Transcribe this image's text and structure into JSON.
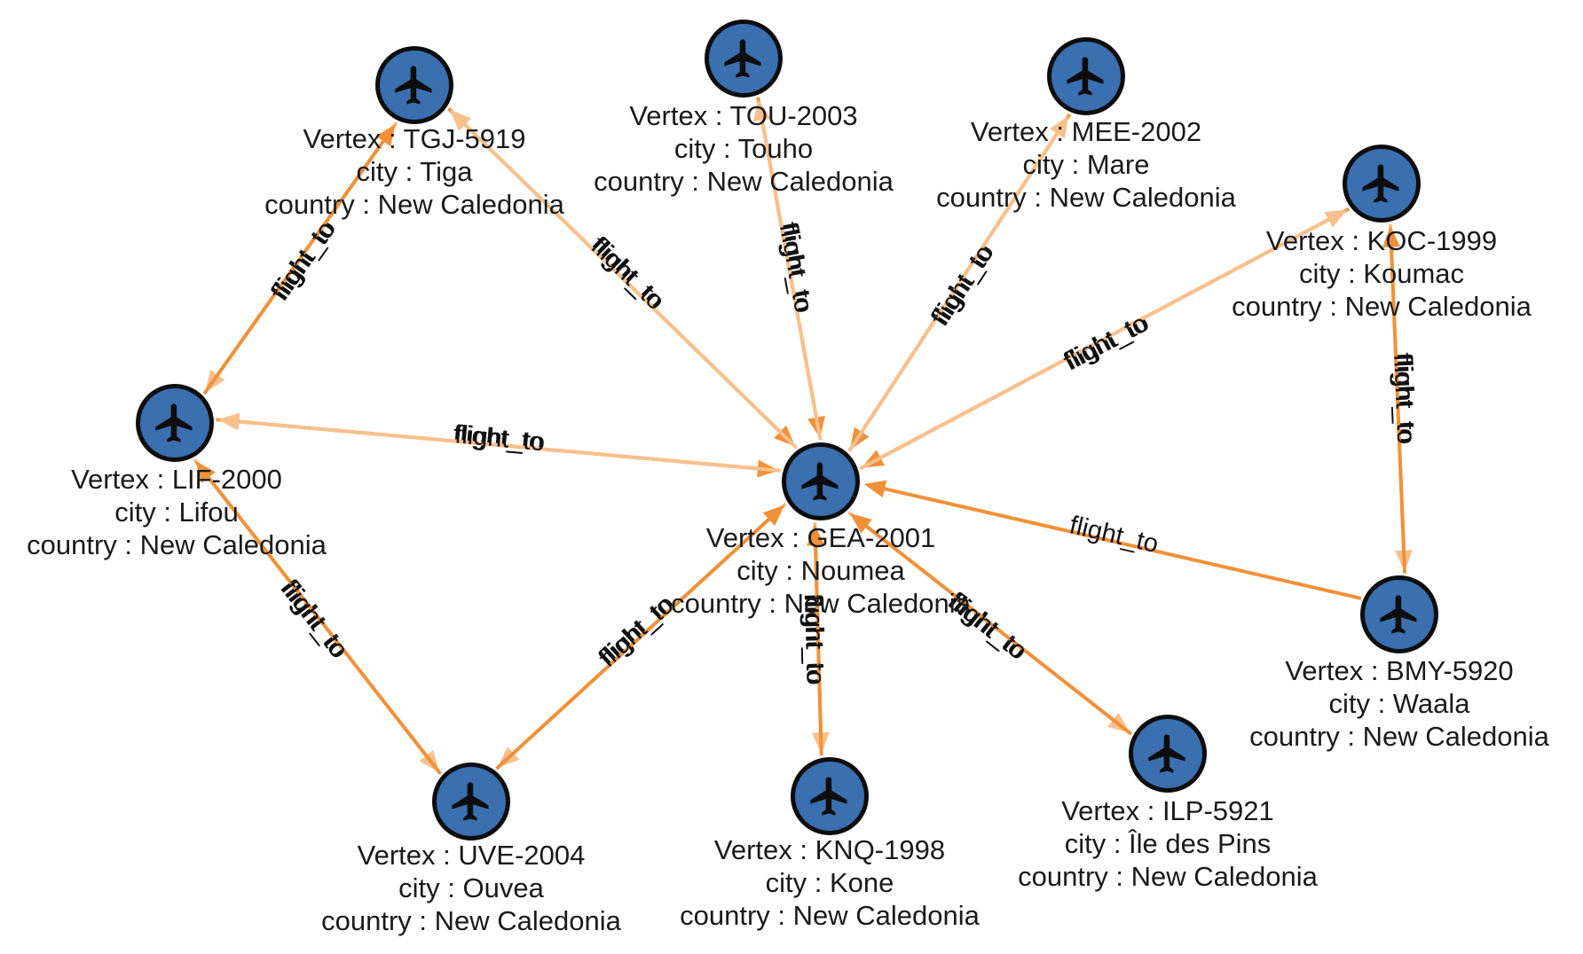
{
  "graph": {
    "colors": {
      "node_fill": "#3a6fb0",
      "node_ring": "#0d0d0d",
      "edge_strong": "#f0913a",
      "edge_faint": "#f7c08c",
      "icon": "#0d0d0d"
    },
    "node_icon": "airplane-icon",
    "nodes": [
      {
        "id": "GEA-2001",
        "vertex": "Vertex : GEA-2001",
        "city": "city : Noumea",
        "country": "country : New Caledonia"
      },
      {
        "id": "TGJ-5919",
        "vertex": "Vertex : TGJ-5919",
        "city": "city : Tiga",
        "country": "country : New Caledonia"
      },
      {
        "id": "TOU-2003",
        "vertex": "Vertex : TOU-2003",
        "city": "city : Touho",
        "country": "country : New Caledonia"
      },
      {
        "id": "MEE-2002",
        "vertex": "Vertex : MEE-2002",
        "city": "city : Mare",
        "country": "country : New Caledonia"
      },
      {
        "id": "KOC-1999",
        "vertex": "Vertex : KOC-1999",
        "city": "city : Koumac",
        "country": "country : New Caledonia"
      },
      {
        "id": "LIF-2000",
        "vertex": "Vertex : LIF-2000",
        "city": "city : Lifou",
        "country": "country : New Caledonia"
      },
      {
        "id": "BMY-5920",
        "vertex": "Vertex : BMY-5920",
        "city": "city : Waala",
        "country": "country : New Caledonia"
      },
      {
        "id": "ILP-5921",
        "vertex": "Vertex : ILP-5921",
        "city": "city : Île des Pins",
        "country": "country : New Caledonia"
      },
      {
        "id": "KNQ-1998",
        "vertex": "Vertex : KNQ-1998",
        "city": "city : Kone",
        "country": "country : New Caledonia"
      },
      {
        "id": "UVE-2004",
        "vertex": "Vertex : UVE-2004",
        "city": "city : Ouvea",
        "country": "country : New Caledonia"
      }
    ],
    "edges": [
      {
        "from": "TGJ-5919",
        "to": "GEA-2001",
        "label": "flight_to"
      },
      {
        "from": "GEA-2001",
        "to": "TGJ-5919",
        "label": "flight_to"
      },
      {
        "from": "TOU-2003",
        "to": "GEA-2001",
        "label": "flight_to"
      },
      {
        "from": "GEA-2001",
        "to": "TOU-2003",
        "label": "flight_to"
      },
      {
        "from": "MEE-2002",
        "to": "GEA-2001",
        "label": "flight_to"
      },
      {
        "from": "GEA-2001",
        "to": "MEE-2002",
        "label": "flight_to"
      },
      {
        "from": "KOC-1999",
        "to": "GEA-2001",
        "label": "flight_to"
      },
      {
        "from": "GEA-2001",
        "to": "KOC-1999",
        "label": "flight_to"
      },
      {
        "from": "LIF-2000",
        "to": "GEA-2001",
        "label": "flight_to"
      },
      {
        "from": "GEA-2001",
        "to": "LIF-2000",
        "label": "flight_to"
      },
      {
        "from": "BMY-5920",
        "to": "GEA-2001",
        "label": "flight_to"
      },
      {
        "from": "GEA-2001",
        "to": "ILP-5921",
        "label": "flight_to"
      },
      {
        "from": "ILP-5921",
        "to": "GEA-2001",
        "label": "flight_to"
      },
      {
        "from": "GEA-2001",
        "to": "KNQ-1998",
        "label": "flight_to"
      },
      {
        "from": "KNQ-1998",
        "to": "GEA-2001",
        "label": "flight_to"
      },
      {
        "from": "GEA-2001",
        "to": "UVE-2004",
        "label": "flight_to"
      },
      {
        "from": "UVE-2004",
        "to": "GEA-2001",
        "label": "flight_to"
      },
      {
        "from": "TGJ-5919",
        "to": "LIF-2000",
        "label": "flight_to"
      },
      {
        "from": "LIF-2000",
        "to": "TGJ-5919",
        "label": "flight_to"
      },
      {
        "from": "LIF-2000",
        "to": "UVE-2004",
        "label": "flight_to"
      },
      {
        "from": "UVE-2004",
        "to": "LIF-2000",
        "label": "flight_to"
      },
      {
        "from": "KOC-1999",
        "to": "BMY-5920",
        "label": "flight_to"
      },
      {
        "from": "BMY-5920",
        "to": "KOC-1999",
        "label": "flight_to"
      }
    ]
  }
}
